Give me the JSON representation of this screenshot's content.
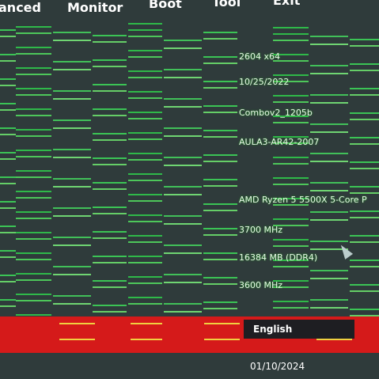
{
  "menu": [
    "anced",
    "Monitor",
    "Boot",
    "Tool",
    "Exit"
  ],
  "info": [
    "2604 x64",
    "10/25/2022",
    "Combov2_1205b",
    "AULA3-AR42-2007",
    "AMD Ryzen 5 5500X 5-Core P",
    "3700 MHz",
    "16384 MB (DDR4)",
    "3600 MHz"
  ],
  "language": "English",
  "date": "01/10/2024"
}
